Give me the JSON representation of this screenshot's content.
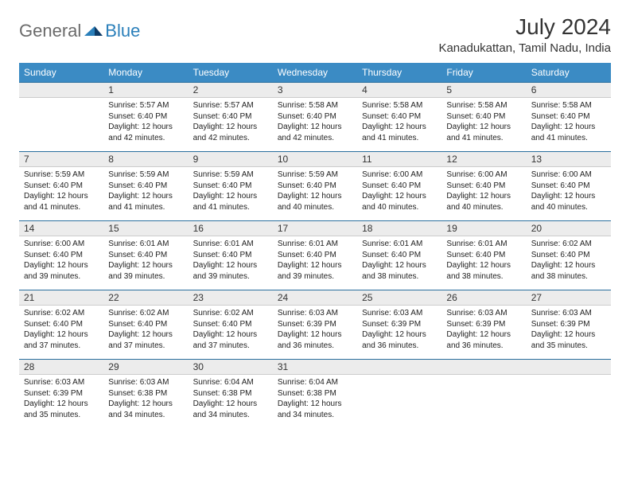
{
  "brand": {
    "part1": "General",
    "part2": "Blue"
  },
  "title": "July 2024",
  "location": "Kanadukattan, Tamil Nadu, India",
  "colors": {
    "header_bg": "#3b8bc4",
    "header_text": "#ffffff",
    "daynum_bg": "#ececec",
    "rule": "#2a6f9e",
    "body_text": "#222222",
    "brand_gray": "#6a6a6a",
    "brand_blue": "#2a7fba"
  },
  "day_headers": [
    "Sunday",
    "Monday",
    "Tuesday",
    "Wednesday",
    "Thursday",
    "Friday",
    "Saturday"
  ],
  "weeks": [
    {
      "nums": [
        "",
        "1",
        "2",
        "3",
        "4",
        "5",
        "6"
      ],
      "cells": [
        "",
        "Sunrise: 5:57 AM\nSunset: 6:40 PM\nDaylight: 12 hours and 42 minutes.",
        "Sunrise: 5:57 AM\nSunset: 6:40 PM\nDaylight: 12 hours and 42 minutes.",
        "Sunrise: 5:58 AM\nSunset: 6:40 PM\nDaylight: 12 hours and 42 minutes.",
        "Sunrise: 5:58 AM\nSunset: 6:40 PM\nDaylight: 12 hours and 41 minutes.",
        "Sunrise: 5:58 AM\nSunset: 6:40 PM\nDaylight: 12 hours and 41 minutes.",
        "Sunrise: 5:58 AM\nSunset: 6:40 PM\nDaylight: 12 hours and 41 minutes."
      ]
    },
    {
      "nums": [
        "7",
        "8",
        "9",
        "10",
        "11",
        "12",
        "13"
      ],
      "cells": [
        "Sunrise: 5:59 AM\nSunset: 6:40 PM\nDaylight: 12 hours and 41 minutes.",
        "Sunrise: 5:59 AM\nSunset: 6:40 PM\nDaylight: 12 hours and 41 minutes.",
        "Sunrise: 5:59 AM\nSunset: 6:40 PM\nDaylight: 12 hours and 41 minutes.",
        "Sunrise: 5:59 AM\nSunset: 6:40 PM\nDaylight: 12 hours and 40 minutes.",
        "Sunrise: 6:00 AM\nSunset: 6:40 PM\nDaylight: 12 hours and 40 minutes.",
        "Sunrise: 6:00 AM\nSunset: 6:40 PM\nDaylight: 12 hours and 40 minutes.",
        "Sunrise: 6:00 AM\nSunset: 6:40 PM\nDaylight: 12 hours and 40 minutes."
      ]
    },
    {
      "nums": [
        "14",
        "15",
        "16",
        "17",
        "18",
        "19",
        "20"
      ],
      "cells": [
        "Sunrise: 6:00 AM\nSunset: 6:40 PM\nDaylight: 12 hours and 39 minutes.",
        "Sunrise: 6:01 AM\nSunset: 6:40 PM\nDaylight: 12 hours and 39 minutes.",
        "Sunrise: 6:01 AM\nSunset: 6:40 PM\nDaylight: 12 hours and 39 minutes.",
        "Sunrise: 6:01 AM\nSunset: 6:40 PM\nDaylight: 12 hours and 39 minutes.",
        "Sunrise: 6:01 AM\nSunset: 6:40 PM\nDaylight: 12 hours and 38 minutes.",
        "Sunrise: 6:01 AM\nSunset: 6:40 PM\nDaylight: 12 hours and 38 minutes.",
        "Sunrise: 6:02 AM\nSunset: 6:40 PM\nDaylight: 12 hours and 38 minutes."
      ]
    },
    {
      "nums": [
        "21",
        "22",
        "23",
        "24",
        "25",
        "26",
        "27"
      ],
      "cells": [
        "Sunrise: 6:02 AM\nSunset: 6:40 PM\nDaylight: 12 hours and 37 minutes.",
        "Sunrise: 6:02 AM\nSunset: 6:40 PM\nDaylight: 12 hours and 37 minutes.",
        "Sunrise: 6:02 AM\nSunset: 6:40 PM\nDaylight: 12 hours and 37 minutes.",
        "Sunrise: 6:03 AM\nSunset: 6:39 PM\nDaylight: 12 hours and 36 minutes.",
        "Sunrise: 6:03 AM\nSunset: 6:39 PM\nDaylight: 12 hours and 36 minutes.",
        "Sunrise: 6:03 AM\nSunset: 6:39 PM\nDaylight: 12 hours and 36 minutes.",
        "Sunrise: 6:03 AM\nSunset: 6:39 PM\nDaylight: 12 hours and 35 minutes."
      ]
    },
    {
      "nums": [
        "28",
        "29",
        "30",
        "31",
        "",
        "",
        ""
      ],
      "cells": [
        "Sunrise: 6:03 AM\nSunset: 6:39 PM\nDaylight: 12 hours and 35 minutes.",
        "Sunrise: 6:03 AM\nSunset: 6:38 PM\nDaylight: 12 hours and 34 minutes.",
        "Sunrise: 6:04 AM\nSunset: 6:38 PM\nDaylight: 12 hours and 34 minutes.",
        "Sunrise: 6:04 AM\nSunset: 6:38 PM\nDaylight: 12 hours and 34 minutes.",
        "",
        "",
        ""
      ]
    }
  ]
}
